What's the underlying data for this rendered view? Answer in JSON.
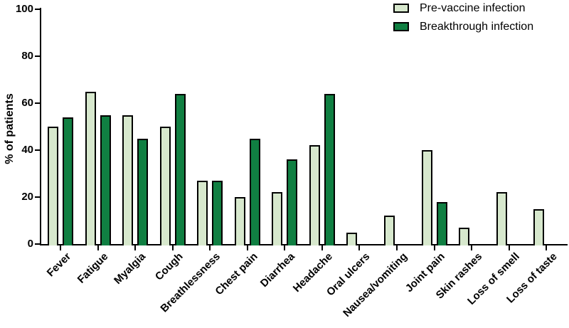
{
  "chart_data": {
    "type": "bar",
    "title": "",
    "ylabel": "% of patients",
    "xlabel": "",
    "ylim": [
      0,
      100
    ],
    "yticks": [
      0,
      20,
      40,
      60,
      80,
      100
    ],
    "grid": false,
    "legend_position": "top-right",
    "axis_color": "#000000",
    "bar_outline_color": "#000000",
    "categories": [
      "Fever",
      "Fatigue",
      "Myalgia",
      "Cough",
      "Breathlessness",
      "Chest pain",
      "Diarrhea",
      "Headache",
      "Oral ulcers",
      "Nausea/vomiting",
      "Joint pain",
      "Skin rashes",
      "Loss of smell",
      "Loss of taste"
    ],
    "series": [
      {
        "name": "Pre-vaccine infection",
        "color": "#d7e8cd",
        "values": [
          50,
          65,
          55,
          50,
          27,
          20,
          22,
          42,
          5,
          12,
          40,
          7,
          22,
          15
        ]
      },
      {
        "name": "Breakthrough infection",
        "color": "#107f42",
        "values": [
          54,
          55,
          45,
          64,
          27,
          45,
          36,
          64,
          0,
          0,
          18,
          0,
          0,
          0
        ]
      }
    ]
  }
}
